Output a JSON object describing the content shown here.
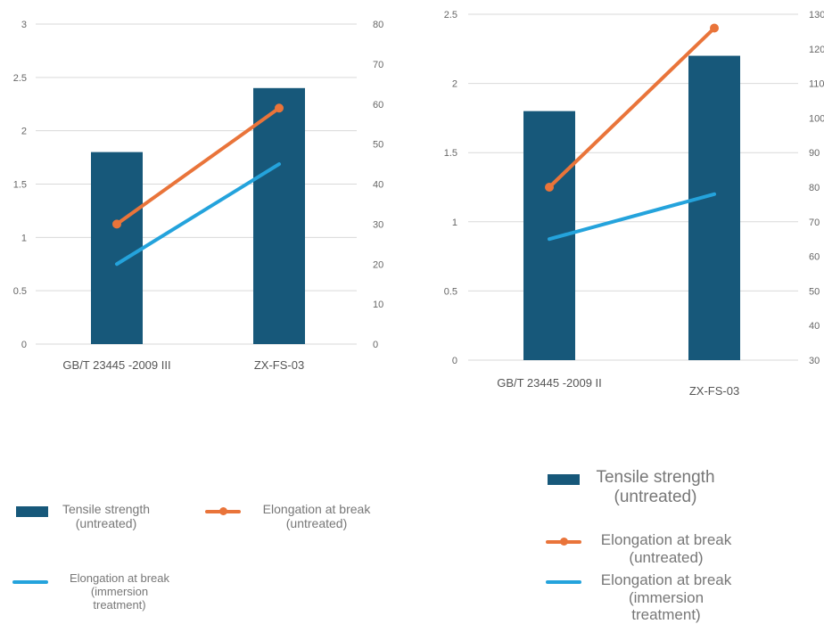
{
  "colors": {
    "bar": "#17587a",
    "orange": "#e9743a",
    "blue": "#24a3dc",
    "grid": "#d9d9d9"
  },
  "chart_data": [
    {
      "type": "bar",
      "categories": [
        "GB/T 23445 -2009 III",
        "ZX-FS-03"
      ],
      "ylim": [
        0,
        3
      ],
      "yticks": [
        "0",
        "0.5",
        "1",
        "1.5",
        "2",
        "2.5",
        "3"
      ],
      "y2lim": [
        0,
        80
      ],
      "y2ticks": [
        "0",
        "10",
        "20",
        "30",
        "40",
        "50",
        "60",
        "70",
        "80"
      ],
      "series": [
        {
          "name": "Tensile strength (untreated)",
          "type": "bar",
          "axis": "left",
          "values": [
            1.8,
            2.4
          ]
        },
        {
          "name": "Elongation at break (untreated)",
          "type": "line",
          "axis": "right",
          "marker": true,
          "values": [
            30,
            59
          ]
        },
        {
          "name": "Elongation at break (immersion treatment)",
          "type": "line",
          "axis": "right",
          "marker": false,
          "values": [
            20,
            45
          ]
        }
      ],
      "legend": [
        {
          "label": "Tensile strength\n(untreated)",
          "kind": "bar"
        },
        {
          "label": "Elongation at break\n(untreated)",
          "kind": "line-marker"
        },
        {
          "label": "Elongation at break\n(immersion\ntreatment)",
          "kind": "line"
        }
      ]
    },
    {
      "type": "bar",
      "categories": [
        "GB/T 23445 -2009 II",
        "ZX-FS-03"
      ],
      "ylim": [
        0,
        2.5
      ],
      "yticks": [
        "0",
        "0.5",
        "1",
        "1.5",
        "2",
        "2.5"
      ],
      "y2lim": [
        30,
        130
      ],
      "y2ticks": [
        "30",
        "40",
        "50",
        "60",
        "70",
        "80",
        "90",
        "100",
        "110",
        "120",
        "130"
      ],
      "series": [
        {
          "name": "Tensile strength (untreated)",
          "type": "bar",
          "axis": "left",
          "values": [
            1.8,
            2.2
          ]
        },
        {
          "name": "Elongation at break (untreated)",
          "type": "line",
          "axis": "right",
          "marker": true,
          "values": [
            80,
            126
          ]
        },
        {
          "name": "Elongation at break (immersion treatment)",
          "type": "line",
          "axis": "right",
          "marker": false,
          "values": [
            65,
            78
          ]
        }
      ],
      "legend": [
        {
          "label": "Tensile strength\n(untreated)",
          "kind": "bar"
        },
        {
          "label": "Elongation at break\n(untreated)",
          "kind": "line-marker"
        },
        {
          "label": "Elongation at break\n(immersion\ntreatment)",
          "kind": "line"
        }
      ]
    }
  ]
}
